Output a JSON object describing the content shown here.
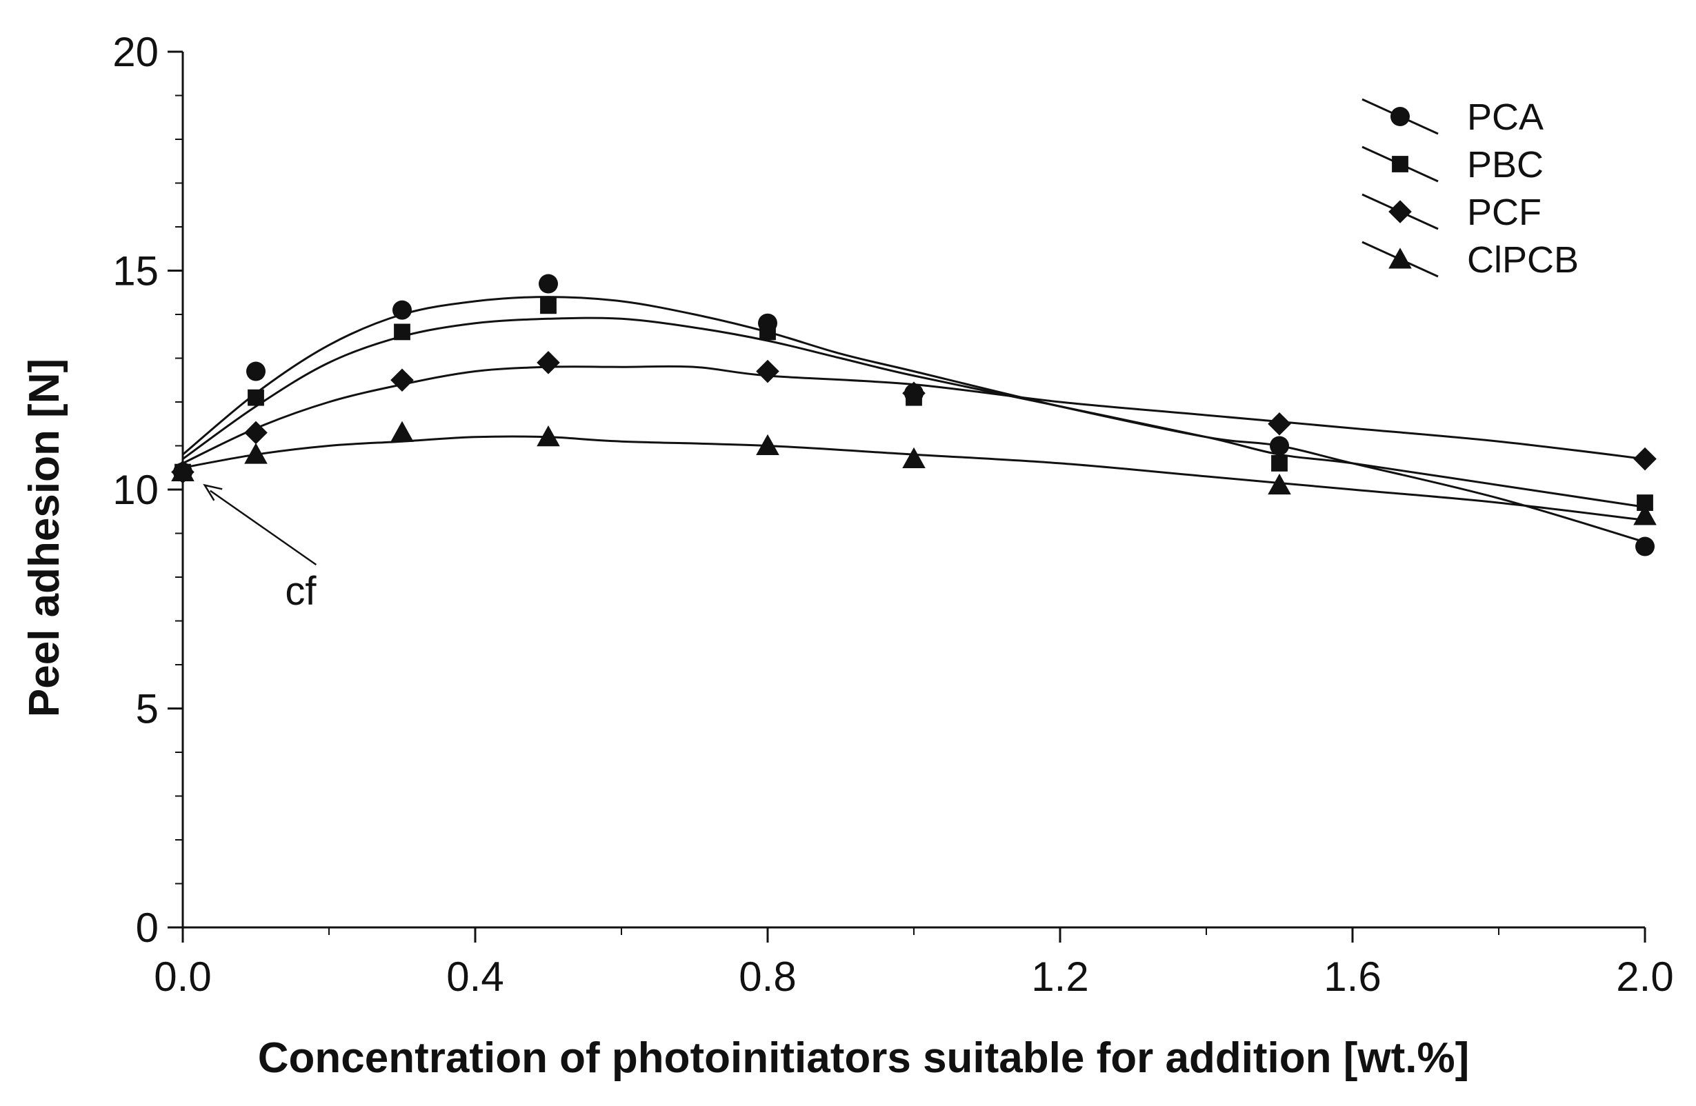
{
  "chart_data": {
    "type": "scatter",
    "title": "",
    "xlabel": "Concentration of photoinitiators suitable for addition [wt.%]",
    "ylabel": "Peel adhesion [N]",
    "xlim": [
      0,
      2.0
    ],
    "ylim": [
      0,
      20
    ],
    "x_ticks": [
      "0.0",
      "0.4",
      "0.8",
      "1.2",
      "1.6",
      "2.0"
    ],
    "y_ticks": [
      "0",
      "5",
      "10",
      "15",
      "20"
    ],
    "grid": false,
    "legend_position": "top-right",
    "x": [
      0.0,
      0.1,
      0.3,
      0.5,
      0.8,
      1.0,
      1.5,
      2.0
    ],
    "series": [
      {
        "name": "PCA",
        "marker": "circle",
        "values": [
          10.4,
          12.7,
          14.1,
          14.7,
          13.8,
          12.2,
          11.0,
          8.7
        ],
        "fit": [
          [
            0,
            10.8
          ],
          [
            0.1,
            12.2
          ],
          [
            0.2,
            13.3
          ],
          [
            0.3,
            14.0
          ],
          [
            0.4,
            14.3
          ],
          [
            0.5,
            14.4
          ],
          [
            0.6,
            14.3
          ],
          [
            0.7,
            14.0
          ],
          [
            0.8,
            13.6
          ],
          [
            0.9,
            13.1
          ],
          [
            1.0,
            12.7
          ],
          [
            1.2,
            11.9
          ],
          [
            1.4,
            11.2
          ],
          [
            1.5,
            11.0
          ],
          [
            1.6,
            10.6
          ],
          [
            1.8,
            9.8
          ],
          [
            2.0,
            8.8
          ]
        ]
      },
      {
        "name": "PBC",
        "marker": "square",
        "values": [
          10.4,
          12.1,
          13.6,
          14.2,
          13.6,
          12.1,
          10.6,
          9.7
        ],
        "fit": [
          [
            0,
            10.7
          ],
          [
            0.1,
            11.9
          ],
          [
            0.2,
            12.9
          ],
          [
            0.3,
            13.5
          ],
          [
            0.4,
            13.8
          ],
          [
            0.5,
            13.9
          ],
          [
            0.6,
            13.9
          ],
          [
            0.7,
            13.7
          ],
          [
            0.8,
            13.4
          ],
          [
            0.9,
            13.0
          ],
          [
            1.0,
            12.6
          ],
          [
            1.2,
            11.9
          ],
          [
            1.4,
            11.2
          ],
          [
            1.5,
            10.8
          ],
          [
            1.6,
            10.6
          ],
          [
            1.8,
            10.1
          ],
          [
            2.0,
            9.6
          ]
        ]
      },
      {
        "name": "PCF",
        "marker": "diamond",
        "values": [
          10.4,
          11.3,
          12.5,
          12.9,
          12.7,
          12.2,
          11.5,
          10.7
        ],
        "fit": [
          [
            0,
            10.6
          ],
          [
            0.1,
            11.4
          ],
          [
            0.2,
            12.0
          ],
          [
            0.3,
            12.4
          ],
          [
            0.4,
            12.7
          ],
          [
            0.5,
            12.8
          ],
          [
            0.6,
            12.8
          ],
          [
            0.7,
            12.8
          ],
          [
            0.8,
            12.6
          ],
          [
            1.0,
            12.4
          ],
          [
            1.2,
            12.0
          ],
          [
            1.4,
            11.7
          ],
          [
            1.6,
            11.4
          ],
          [
            1.8,
            11.1
          ],
          [
            2.0,
            10.7
          ]
        ]
      },
      {
        "name": "ClPCB",
        "marker": "triangle",
        "values": [
          10.4,
          10.8,
          11.3,
          11.2,
          11.0,
          10.7,
          10.1,
          9.4
        ],
        "fit": [
          [
            0,
            10.5
          ],
          [
            0.1,
            10.8
          ],
          [
            0.2,
            11.0
          ],
          [
            0.3,
            11.1
          ],
          [
            0.4,
            11.2
          ],
          [
            0.5,
            11.2
          ],
          [
            0.6,
            11.1
          ],
          [
            0.8,
            11.0
          ],
          [
            1.0,
            10.8
          ],
          [
            1.2,
            10.6
          ],
          [
            1.4,
            10.3
          ],
          [
            1.6,
            10.0
          ],
          [
            1.8,
            9.7
          ],
          [
            2.0,
            9.3
          ]
        ]
      }
    ],
    "annotations": [
      {
        "text": "cf",
        "arrow_to": [
          0.03,
          10.1
        ],
        "text_at": [
          0.14,
          8.0
        ]
      }
    ]
  }
}
